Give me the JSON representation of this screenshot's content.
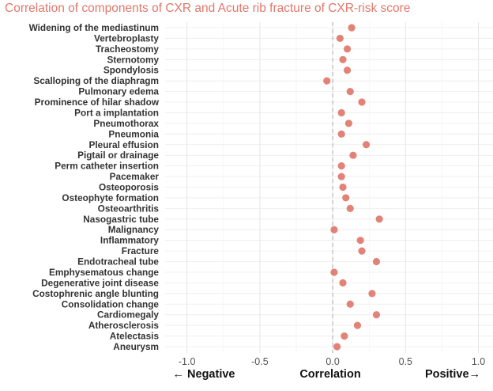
{
  "chart_data": {
    "type": "scatter",
    "title": "Correlation of components of CXR and Acute rib fracture of CXR-risk score",
    "xlabel_center": "Correlation",
    "xlabel_left": "← Negative",
    "xlabel_right": "Positive→",
    "xlim": [
      -1.15,
      1.1
    ],
    "x_ticks": [
      -1.0,
      -0.5,
      0.0,
      0.5,
      1.0
    ],
    "x_tick_labels": [
      "-1.0",
      "-0.5",
      "0.0",
      "0.5",
      "1.0"
    ],
    "reference_line": 0,
    "grid": true,
    "point_color": "#e0786b",
    "categories": [
      "Widening of the mediastinum",
      "Vertebroplasty",
      "Tracheostomy",
      "Sternotomy",
      "Spondylosis",
      "Scalloping of the diaphragm",
      "Pulmonary edema",
      "Prominence of hilar shadow",
      "Port a implantation",
      "Pneumothorax",
      "Pneumonia",
      "Pleural effusion",
      "Pigtail or drainage",
      "Perm catheter insertion",
      "Pacemaker",
      "Osteoporosis",
      "Osteophyte formation",
      "Osteoarthritis",
      "Nasogastric tube",
      "Malignancy",
      "Inflammatory",
      "Fracture",
      "Endotracheal tube",
      "Emphysematous change",
      "Degenerative joint disease",
      "Costophrenic angle blunting",
      "Consolidation change",
      "Cardiomegaly",
      "Atherosclerosis",
      "Atelectasis",
      "Aneurysm"
    ],
    "values": [
      0.13,
      0.05,
      0.1,
      0.07,
      0.1,
      -0.04,
      0.12,
      0.2,
      0.06,
      0.11,
      0.06,
      0.23,
      0.14,
      0.06,
      0.06,
      0.07,
      0.09,
      0.12,
      0.32,
      0.01,
      0.19,
      0.2,
      0.3,
      0.01,
      0.07,
      0.27,
      0.12,
      0.3,
      0.17,
      0.08,
      0.03
    ]
  }
}
